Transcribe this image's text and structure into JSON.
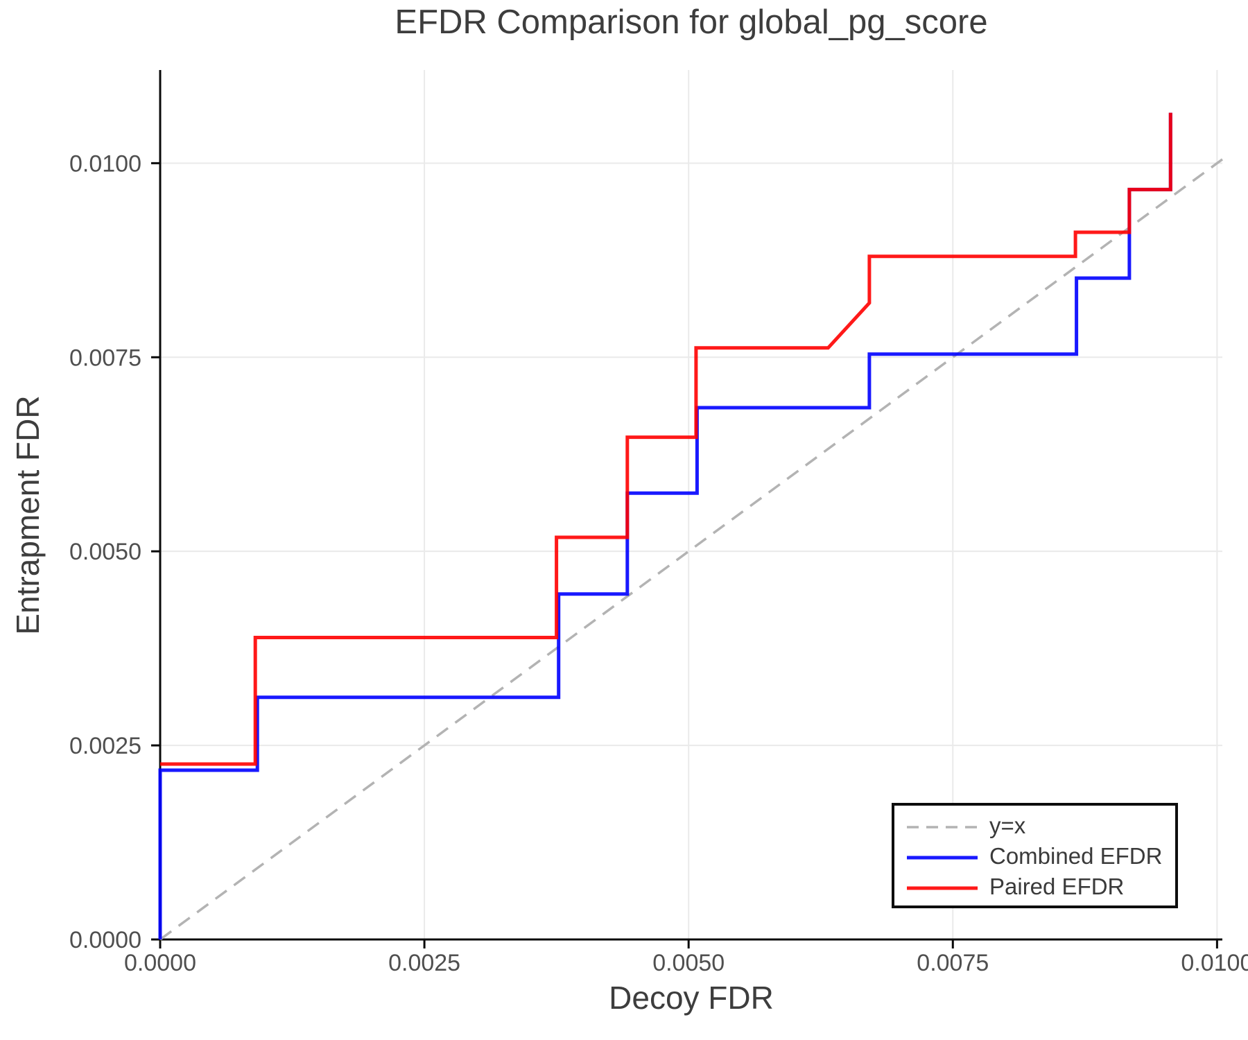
{
  "figure": {
    "title": "EFDR Comparison for global_pg_score",
    "xlabel": "Decoy FDR",
    "ylabel": "Entrapment FDR"
  },
  "chart_data": {
    "type": "line",
    "title": "EFDR Comparison for global_pg_score",
    "xlabel": "Decoy FDR",
    "ylabel": "Entrapment FDR",
    "xlim": [
      0,
      0.01005
    ],
    "ylim": [
      0,
      0.0112
    ],
    "grid": true,
    "legend_position": "lower right",
    "xtick_values": [
      0,
      0.0025,
      0.005,
      0.0075,
      0.01
    ],
    "xtick_labels": [
      "0.0000",
      "0.0025",
      "0.0050",
      "0.0075",
      "0.0100"
    ],
    "ytick_values": [
      0,
      0.0025,
      0.005,
      0.0075,
      0.01
    ],
    "ytick_labels": [
      "0.0000",
      "0.0025",
      "0.0050",
      "0.0075",
      "0.0100"
    ],
    "axis_color": "#0a0a0a",
    "grid_color": "#eaeaea",
    "tick_label_color": "#4f4f4f",
    "text_color": "#3d3d3d",
    "legend": {
      "entries": [
        "y=x",
        "Combined EFDR",
        "Paired EFDR"
      ]
    },
    "series": [
      {
        "name": "y=x",
        "line_style": "dashed",
        "color": "#b3b3b3",
        "line_width": 3.5,
        "opacity": 1,
        "points": [
          [
            0,
            0
          ],
          [
            0.01005,
            0.01005
          ]
        ]
      },
      {
        "name": "Combined EFDR",
        "line_style": "solid",
        "color": "#0000ff",
        "line_width": 5,
        "opacity": 0.9,
        "points": [
          [
            0.0,
            0.0
          ],
          [
            0.0,
            0.00218
          ],
          [
            0.00092,
            0.00218
          ],
          [
            0.00092,
            0.00312
          ],
          [
            0.00377,
            0.00312
          ],
          [
            0.00377,
            0.00445
          ],
          [
            0.00442,
            0.00445
          ],
          [
            0.00442,
            0.00575
          ],
          [
            0.00508,
            0.00575
          ],
          [
            0.00508,
            0.00685
          ],
          [
            0.00671,
            0.00685
          ],
          [
            0.00671,
            0.00754
          ],
          [
            0.00867,
            0.00754
          ],
          [
            0.00867,
            0.00852
          ],
          [
            0.00917,
            0.00852
          ],
          [
            0.00917,
            0.00966
          ],
          [
            0.00956,
            0.00966
          ],
          [
            0.00956,
            0.01065
          ]
        ]
      },
      {
        "name": "Paired EFDR",
        "line_style": "solid",
        "color": "#ff0000",
        "line_width": 5,
        "opacity": 0.9,
        "points": [
          [
            0.0,
            0.00226
          ],
          [
            0.0009,
            0.00226
          ],
          [
            0.0009,
            0.00389
          ],
          [
            0.00375,
            0.00389
          ],
          [
            0.00375,
            0.00518
          ],
          [
            0.00442,
            0.00518
          ],
          [
            0.00442,
            0.00647
          ],
          [
            0.00507,
            0.00647
          ],
          [
            0.00507,
            0.00762
          ],
          [
            0.00632,
            0.00762
          ],
          [
            0.00671,
            0.0082
          ],
          [
            0.00671,
            0.0088
          ],
          [
            0.00866,
            0.0088
          ],
          [
            0.00866,
            0.00911
          ],
          [
            0.00917,
            0.00911
          ],
          [
            0.00917,
            0.00966
          ],
          [
            0.00956,
            0.00966
          ],
          [
            0.00956,
            0.01065
          ]
        ]
      }
    ]
  }
}
